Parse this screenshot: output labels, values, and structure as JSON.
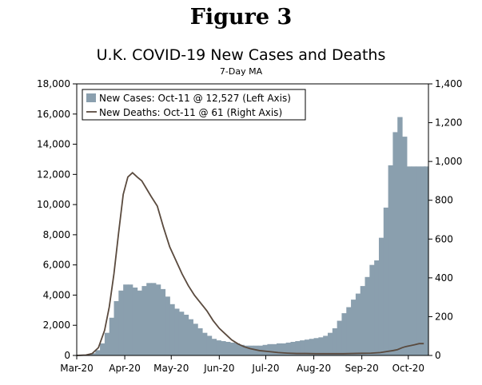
{
  "figure_label": "Figure 3",
  "chart_data": {
    "type": "bar+line",
    "title": "U.K. COVID-19 New Cases and Deaths",
    "subtitle": "7-Day MA",
    "xlabel": "",
    "x_ticks": [
      "Mar-20",
      "Apr-20",
      "May-20",
      "Jun-20",
      "Jul-20",
      "Aug-20",
      "Sep-20",
      "Oct-20"
    ],
    "y_left": {
      "lim": [
        0,
        18000
      ],
      "ticks": [
        "0",
        "2,000",
        "4,000",
        "6,000",
        "8,000",
        "10,000",
        "12,000",
        "14,000",
        "16,000",
        "18,000"
      ]
    },
    "y_right": {
      "lim": [
        0,
        1400
      ],
      "ticks": [
        "0",
        "200",
        "400",
        "600",
        "800",
        "1,000",
        "1,200",
        "1,400"
      ]
    },
    "series": [
      {
        "name": "New Cases: Oct-11 @ 12,527 (Left Axis)",
        "kind": "bar",
        "axis": "left",
        "color": "#8a9fae",
        "x_days": [
          0,
          3,
          6,
          9,
          12,
          15,
          18,
          21,
          24,
          27,
          30,
          33,
          36,
          39,
          42,
          45,
          48,
          51,
          54,
          57,
          60,
          63,
          66,
          69,
          72,
          75,
          78,
          81,
          84,
          87,
          90,
          93,
          96,
          99,
          102,
          105,
          108,
          111,
          114,
          117,
          120,
          123,
          126,
          129,
          132,
          135,
          138,
          141,
          144,
          147,
          150,
          153,
          156,
          159,
          162,
          165,
          168,
          171,
          174,
          177,
          180,
          183,
          186,
          189,
          192,
          195,
          198,
          201,
          204,
          207,
          210,
          213,
          216,
          219,
          222,
          224
        ],
        "values": [
          0,
          20,
          60,
          150,
          350,
          800,
          1500,
          2500,
          3600,
          4300,
          4700,
          4700,
          4500,
          4300,
          4600,
          4800,
          4800,
          4700,
          4400,
          3900,
          3400,
          3100,
          2900,
          2700,
          2400,
          2100,
          1800,
          1500,
          1300,
          1100,
          1000,
          950,
          900,
          850,
          800,
          700,
          650,
          650,
          650,
          650,
          700,
          750,
          750,
          800,
          800,
          850,
          900,
          950,
          1000,
          1050,
          1100,
          1150,
          1200,
          1300,
          1500,
          1800,
          2300,
          2800,
          3200,
          3700,
          4100,
          4600,
          5200,
          6000,
          6300,
          7800,
          9800,
          12600,
          14800,
          15800,
          14500,
          12527,
          12527,
          12527,
          12527,
          12527
        ]
      },
      {
        "name": "New Deaths: Oct-11 @ 61 (Right Axis)",
        "kind": "line",
        "axis": "right",
        "color": "#5a4a3e",
        "x_days": [
          0,
          6,
          10,
          14,
          18,
          21,
          24,
          27,
          30,
          33,
          36,
          39,
          42,
          45,
          48,
          52,
          56,
          60,
          64,
          68,
          72,
          76,
          80,
          84,
          88,
          92,
          96,
          100,
          104,
          108,
          112,
          118,
          124,
          130,
          136,
          142,
          148,
          154,
          160,
          166,
          172,
          178,
          184,
          190,
          196,
          200,
          204,
          207,
          210,
          212,
          215,
          218,
          221,
          224
        ],
        "values": [
          0,
          2,
          10,
          40,
          130,
          250,
          420,
          630,
          830,
          920,
          942,
          920,
          900,
          860,
          820,
          770,
          660,
          560,
          490,
          420,
          360,
          310,
          270,
          230,
          180,
          140,
          110,
          80,
          60,
          45,
          35,
          25,
          20,
          15,
          12,
          10,
          10,
          9,
          9,
          9,
          9,
          10,
          11,
          12,
          15,
          20,
          25,
          30,
          40,
          45,
          50,
          55,
          61,
          61
        ]
      }
    ],
    "legend_position": "top-left"
  }
}
